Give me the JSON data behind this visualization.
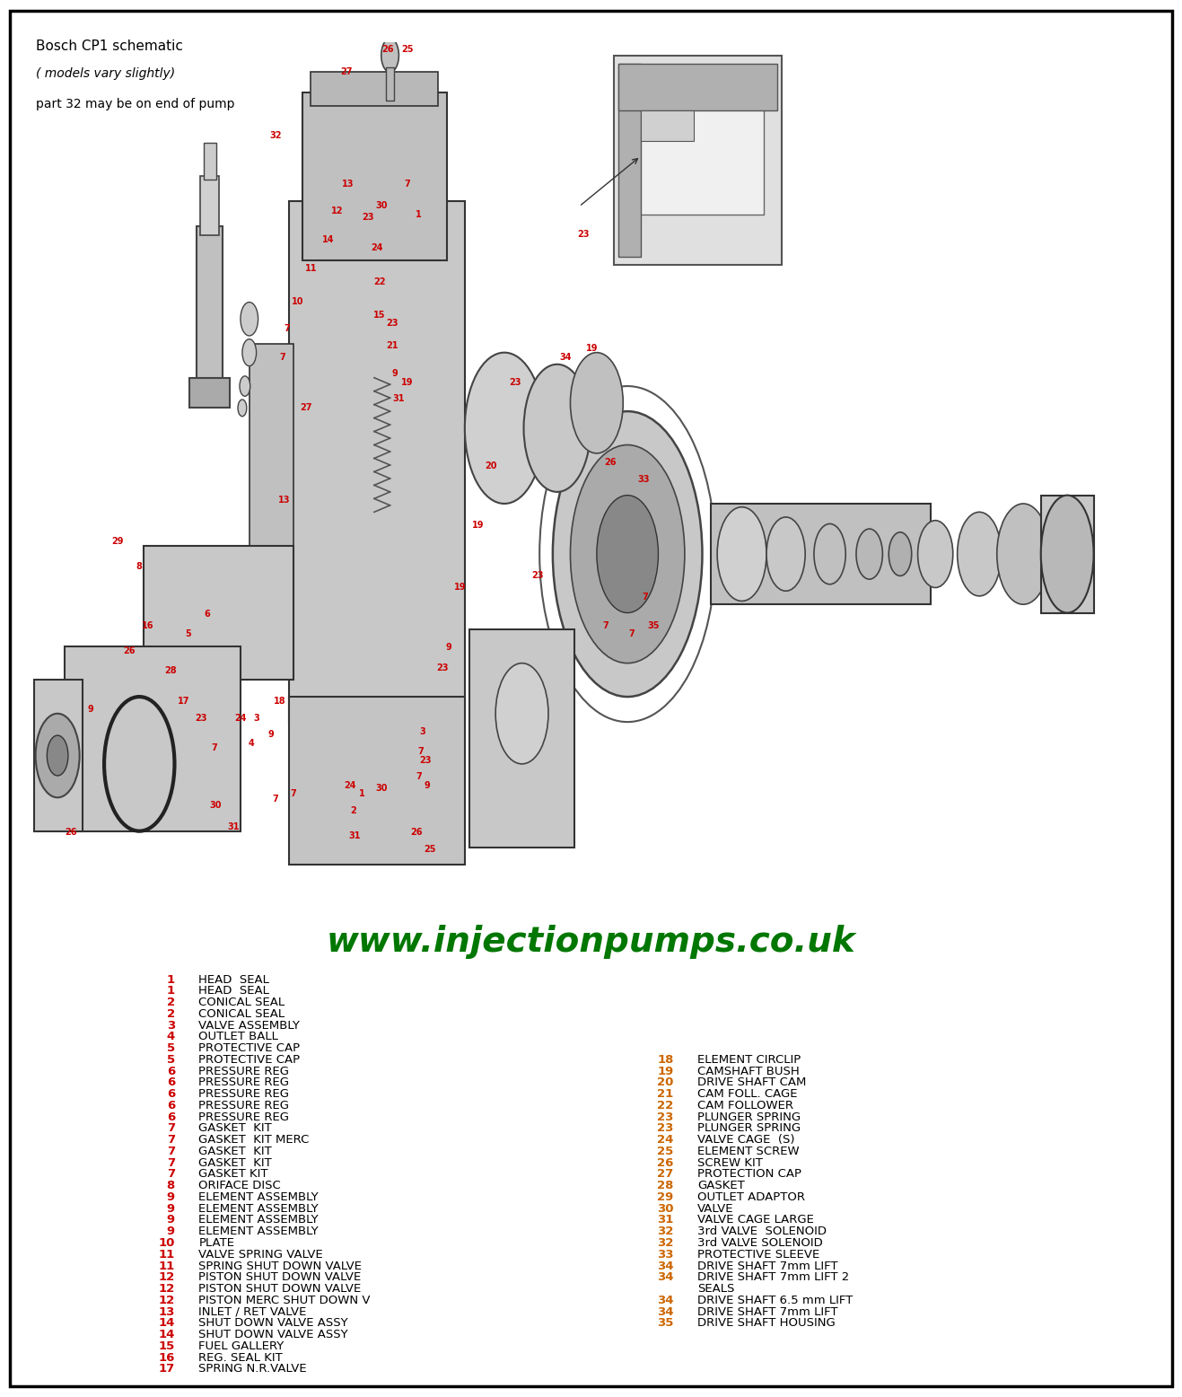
{
  "title_lines": [
    "Bosch CP1 schematic",
    "( models vary slightly)",
    "part 32 may be on end of pump"
  ],
  "website": "www.injectionpumps.co.uk",
  "left_parts": [
    {
      "num": "1",
      "desc": "HEAD  SEAL"
    },
    {
      "num": "1",
      "desc": "HEAD  SEAL"
    },
    {
      "num": "2",
      "desc": "CONICAL SEAL"
    },
    {
      "num": "2",
      "desc": "CONICAL SEAL"
    },
    {
      "num": "3",
      "desc": "VALVE ASSEMBLY"
    },
    {
      "num": "4",
      "desc": "OUTLET BALL"
    },
    {
      "num": "5",
      "desc": "PROTECTIVE CAP"
    },
    {
      "num": "5",
      "desc": "PROTECTIVE CAP"
    },
    {
      "num": "6",
      "desc": "PRESSURE REG"
    },
    {
      "num": "6",
      "desc": "PRESSURE REG"
    },
    {
      "num": "6",
      "desc": "PRESSURE REG"
    },
    {
      "num": "6",
      "desc": "PRESSURE REG"
    },
    {
      "num": "6",
      "desc": "PRESSURE REG"
    },
    {
      "num": "7",
      "desc": "GASKET  KIT"
    },
    {
      "num": "7",
      "desc": "GASKET  KIT MERC"
    },
    {
      "num": "7",
      "desc": "GASKET  KIT"
    },
    {
      "num": "7",
      "desc": "GASKET  KIT"
    },
    {
      "num": "7",
      "desc": "GASKET KIT"
    },
    {
      "num": "8",
      "desc": "ORIFACE DISC"
    },
    {
      "num": "9",
      "desc": "ELEMENT ASSEMBLY"
    },
    {
      "num": "9",
      "desc": "ELEMENT ASSEMBLY"
    },
    {
      "num": "9",
      "desc": "ELEMENT ASSEMBLY"
    },
    {
      "num": "9",
      "desc": "ELEMENT ASSEMBLY"
    },
    {
      "num": "10",
      "desc": "PLATE"
    },
    {
      "num": "11",
      "desc": "VALVE SPRING VALVE"
    },
    {
      "num": "11",
      "desc": "SPRING SHUT DOWN VALVE"
    },
    {
      "num": "12",
      "desc": "PISTON SHUT DOWN VALVE"
    },
    {
      "num": "12",
      "desc": "PISTON SHUT DOWN VALVE"
    },
    {
      "num": "12",
      "desc": "PISTON MERC SHUT DOWN V"
    },
    {
      "num": "13",
      "desc": "INLET / RET VALVE"
    },
    {
      "num": "14",
      "desc": "SHUT DOWN VALVE ASSY"
    },
    {
      "num": "14",
      "desc": "SHUT DOWN VALVE ASSY"
    },
    {
      "num": "15",
      "desc": "FUEL GALLERY"
    },
    {
      "num": "16",
      "desc": "REG. SEAL KIT"
    },
    {
      "num": "17",
      "desc": "SPRING N.R.VALVE"
    }
  ],
  "right_parts": [
    {
      "num": "18",
      "desc": "ELEMENT CIRCLIP"
    },
    {
      "num": "19",
      "desc": "CAMSHAFT BUSH"
    },
    {
      "num": "20",
      "desc": "DRIVE SHAFT CAM"
    },
    {
      "num": "21",
      "desc": "CAM FOLL. CAGE"
    },
    {
      "num": "22",
      "desc": "CAM FOLLOWER"
    },
    {
      "num": "23",
      "desc": "PLUNGER SPRING"
    },
    {
      "num": "23",
      "desc": "PLUNGER SPRING"
    },
    {
      "num": "24",
      "desc": "VALVE CAGE  (S)"
    },
    {
      "num": "25",
      "desc": "ELEMENT SCREW"
    },
    {
      "num": "26",
      "desc": "SCREW KIT"
    },
    {
      "num": "27",
      "desc": "PROTECTION CAP"
    },
    {
      "num": "28",
      "desc": "GASKET"
    },
    {
      "num": "29",
      "desc": "OUTLET ADAPTOR"
    },
    {
      "num": "30",
      "desc": "VALVE"
    },
    {
      "num": "31",
      "desc": "VALVE CAGE LARGE"
    },
    {
      "num": "32",
      "desc": "3rd VALVE  SOLENOID"
    },
    {
      "num": "32",
      "desc": "3rd VALVE SOLENOID"
    },
    {
      "num": "33",
      "desc": "PROTECTIVE SLEEVE"
    },
    {
      "num": "34",
      "desc": "DRIVE SHAFT 7mm LIFT"
    },
    {
      "num": "34",
      "desc": "DRIVE SHAFT 7mm LIFT 2"
    },
    {
      "num": "",
      "desc": "SEALS"
    },
    {
      "num": "34",
      "desc": "DRIVE SHAFT 6.5 mm LIFT"
    },
    {
      "num": "34",
      "desc": "DRIVE SHAFT 7mm LIFT"
    },
    {
      "num": "35",
      "desc": "DRIVE SHAFT HOUSING"
    }
  ],
  "left_num_color": "#cc0000",
  "right_num_color": "#cc6600",
  "desc_color": "#000000",
  "website_color": "#007700",
  "title_color": "#000000",
  "bg_color": "#ffffff",
  "border_color": "#000000",
  "figsize": [
    13.17,
    15.56
  ],
  "dpi": 100
}
